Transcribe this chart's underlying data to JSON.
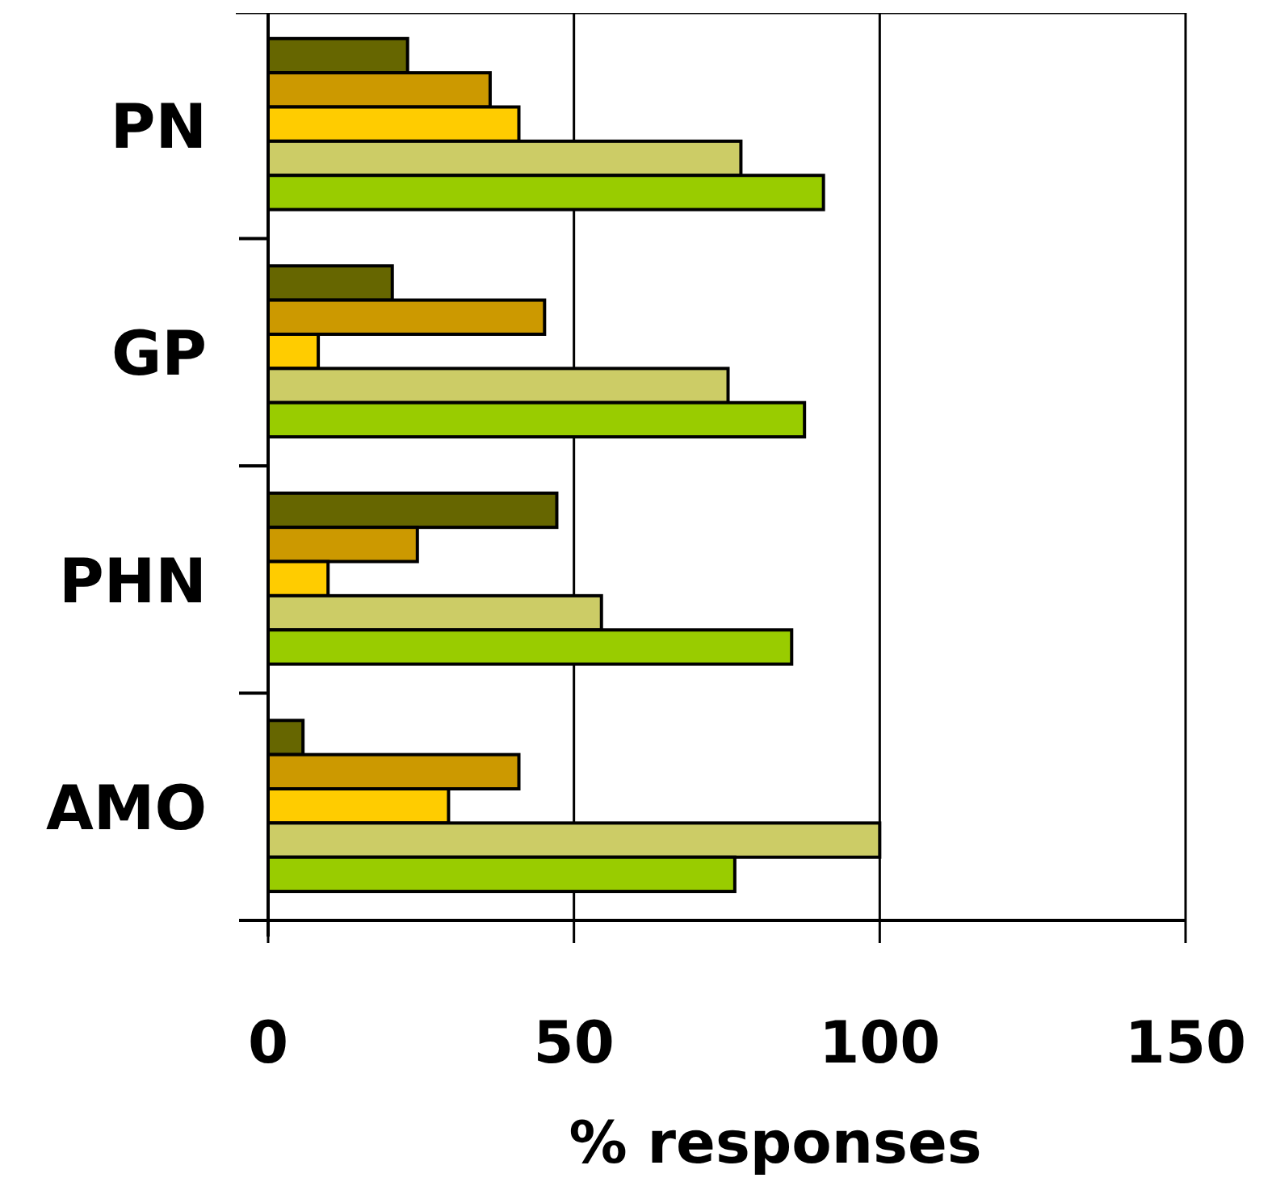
{
  "chart_data": {
    "type": "bar",
    "orientation": "horizontal",
    "xlabel": "% responses",
    "categories": [
      "PN",
      "GP",
      "PHN",
      "AMO"
    ],
    "series": [
      {
        "color": "#666600",
        "values": [
          22.8,
          20.3,
          47.2,
          5.7
        ]
      },
      {
        "color": "#cc9900",
        "values": [
          36.3,
          45.2,
          24.4,
          41
        ]
      },
      {
        "color": "#ffcc00",
        "values": [
          41,
          8.2,
          9.8,
          29.5
        ]
      },
      {
        "color": "#cccc66",
        "values": [
          77.3,
          75.2,
          54.5,
          100
        ]
      },
      {
        "color": "#99cc00",
        "values": [
          90.8,
          87.7,
          85.6,
          76.3
        ]
      }
    ],
    "xlim": [
      0,
      150
    ],
    "xticks": [
      0,
      50,
      100,
      150
    ],
    "grid": "x"
  }
}
